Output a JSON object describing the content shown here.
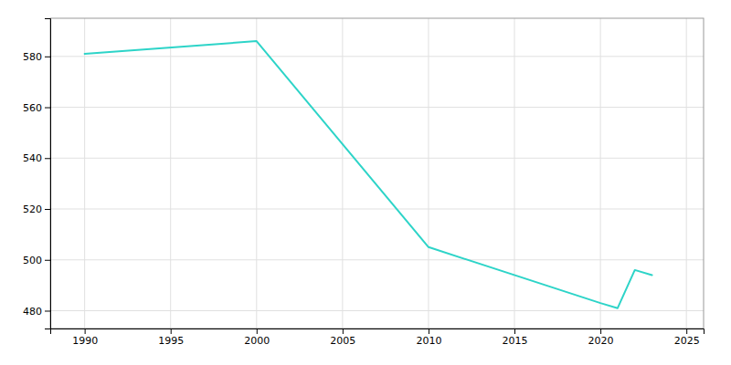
{
  "chart_data": {
    "type": "line",
    "x": [
      1990,
      2000,
      2010,
      2020,
      2021,
      2022,
      2023
    ],
    "values": [
      581,
      586,
      505,
      483,
      481,
      496,
      494
    ],
    "color": "#2dd4c8",
    "xlim": [
      1988,
      2026
    ],
    "ylim": [
      473,
      595
    ],
    "xticks": [
      1990,
      1995,
      2000,
      2005,
      2010,
      2015,
      2020,
      2025
    ],
    "yticks": [
      480,
      500,
      520,
      540,
      560,
      580
    ],
    "grid": true
  }
}
